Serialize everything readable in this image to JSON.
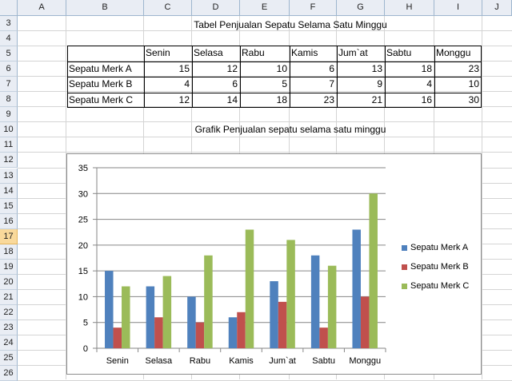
{
  "columns": [
    "A",
    "B",
    "C",
    "D",
    "E",
    "F",
    "G",
    "H",
    "I",
    "J"
  ],
  "rows": [
    "3",
    "4",
    "5",
    "6",
    "7",
    "8",
    "9",
    "10",
    "11",
    "12",
    "13",
    "14",
    "15",
    "16",
    "17",
    "18",
    "19",
    "20",
    "21",
    "22",
    "23",
    "24",
    "25",
    "26"
  ],
  "selected_row": "17",
  "table": {
    "title": "Tabel Penjualan Sepatu Selama Satu Minggu",
    "headers": [
      "Senin",
      "Selasa",
      "Rabu",
      "Kamis",
      "Jum`at",
      "Sabtu",
      "Monggu"
    ],
    "rows": [
      {
        "label": "Sepatu Merk A",
        "values": [
          "15",
          "12",
          "10",
          "6",
          "13",
          "18",
          "23"
        ]
      },
      {
        "label": "Sepatu Merk B",
        "values": [
          "4",
          "6",
          "5",
          "7",
          "9",
          "4",
          "10"
        ]
      },
      {
        "label": "Sepatu Merk C",
        "values": [
          "12",
          "14",
          "18",
          "23",
          "21",
          "16",
          "30"
        ]
      }
    ]
  },
  "chart_title_cell": "Grafik Penjualan sepatu selama satu minggu",
  "chart_data": {
    "type": "bar",
    "categories": [
      "Senin",
      "Selasa",
      "Rabu",
      "Kamis",
      "Jum`at",
      "Sabtu",
      "Monggu"
    ],
    "series": [
      {
        "name": "Sepatu Merk A",
        "values": [
          15,
          12,
          10,
          6,
          13,
          18,
          23
        ],
        "color": "#4f81bd"
      },
      {
        "name": "Sepatu Merk B",
        "values": [
          4,
          6,
          5,
          7,
          9,
          4,
          10
        ],
        "color": "#c0504d"
      },
      {
        "name": "Sepatu Merk C",
        "values": [
          12,
          14,
          18,
          23,
          21,
          16,
          30
        ],
        "color": "#9bbb59"
      }
    ],
    "ylim": [
      0,
      35
    ],
    "yticks": [
      "0",
      "5",
      "10",
      "15",
      "20",
      "25",
      "30",
      "35"
    ],
    "grid": true,
    "legend": "right"
  }
}
